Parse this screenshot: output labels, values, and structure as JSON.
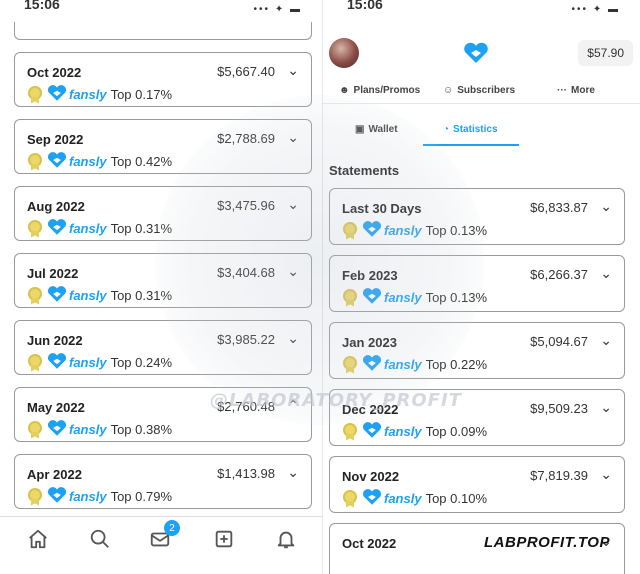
{
  "left": {
    "status_time": "15:06",
    "status_icons": "••• ✦ ▬",
    "cards": [
      {
        "period": "Oct 2022",
        "amount": "$5,667.40",
        "brand": "fansly",
        "rank": "Top 0.17%",
        "expanded": false
      },
      {
        "period": "Sep 2022",
        "amount": "$2,788.69",
        "brand": "fansly",
        "rank": "Top 0.42%",
        "expanded": false
      },
      {
        "period": "Aug 2022",
        "amount": "$3,475.96",
        "brand": "fansly",
        "rank": "Top 0.31%",
        "expanded": false
      },
      {
        "period": "Jul 2022",
        "amount": "$3,404.68",
        "brand": "fansly",
        "rank": "Top 0.31%",
        "expanded": false
      },
      {
        "period": "Jun 2022",
        "amount": "$3,985.22",
        "brand": "fansly",
        "rank": "Top 0.24%",
        "expanded": false
      },
      {
        "period": "May 2022",
        "amount": "$2,760.48",
        "brand": "fansly",
        "rank": "Top 0.38%",
        "expanded": true
      },
      {
        "period": "Apr 2022",
        "amount": "$1,413.98",
        "brand": "fansly",
        "rank": "Top 0.79%",
        "expanded": false
      }
    ],
    "nav": {
      "icons": [
        "home-icon",
        "search-icon",
        "messages-icon",
        "add-post-icon",
        "notifications-icon"
      ],
      "messages_badge": "2"
    }
  },
  "right": {
    "status_time": "15:06",
    "status_icons": "••• ✦ ▬",
    "balance": "$57.90",
    "tabs_primary": [
      "Plans/Promos",
      "Subscribers",
      "More"
    ],
    "tabs_secondary": [
      "Wallet",
      "Statistics"
    ],
    "active_secondary": "Statistics",
    "statements_title": "Statements",
    "cards": [
      {
        "period": "Last 30 Days",
        "amount": "$6,833.87",
        "brand": "fansly",
        "rank": "Top 0.13%"
      },
      {
        "period": "Feb 2023",
        "amount": "$6,266.37",
        "brand": "fansly",
        "rank": "Top 0.13%"
      },
      {
        "period": "Jan 2023",
        "amount": "$5,094.67",
        "brand": "fansly",
        "rank": "Top 0.22%"
      },
      {
        "period": "Dec 2022",
        "amount": "$9,509.23",
        "brand": "fansly",
        "rank": "Top 0.09%"
      },
      {
        "period": "Nov 2022",
        "amount": "$7,819.39",
        "brand": "fansly",
        "rank": "Top 0.10%"
      },
      {
        "period": "Oct 2022",
        "amount": "",
        "brand": "",
        "rank": ""
      }
    ]
  },
  "watermark": "@LABORATORY_PROFIT",
  "footer_brand": "LABPROFIT.TOP",
  "colors": {
    "accent": "#1da1f2",
    "medal": "#ecd86a",
    "border": "#9a9a9a"
  }
}
